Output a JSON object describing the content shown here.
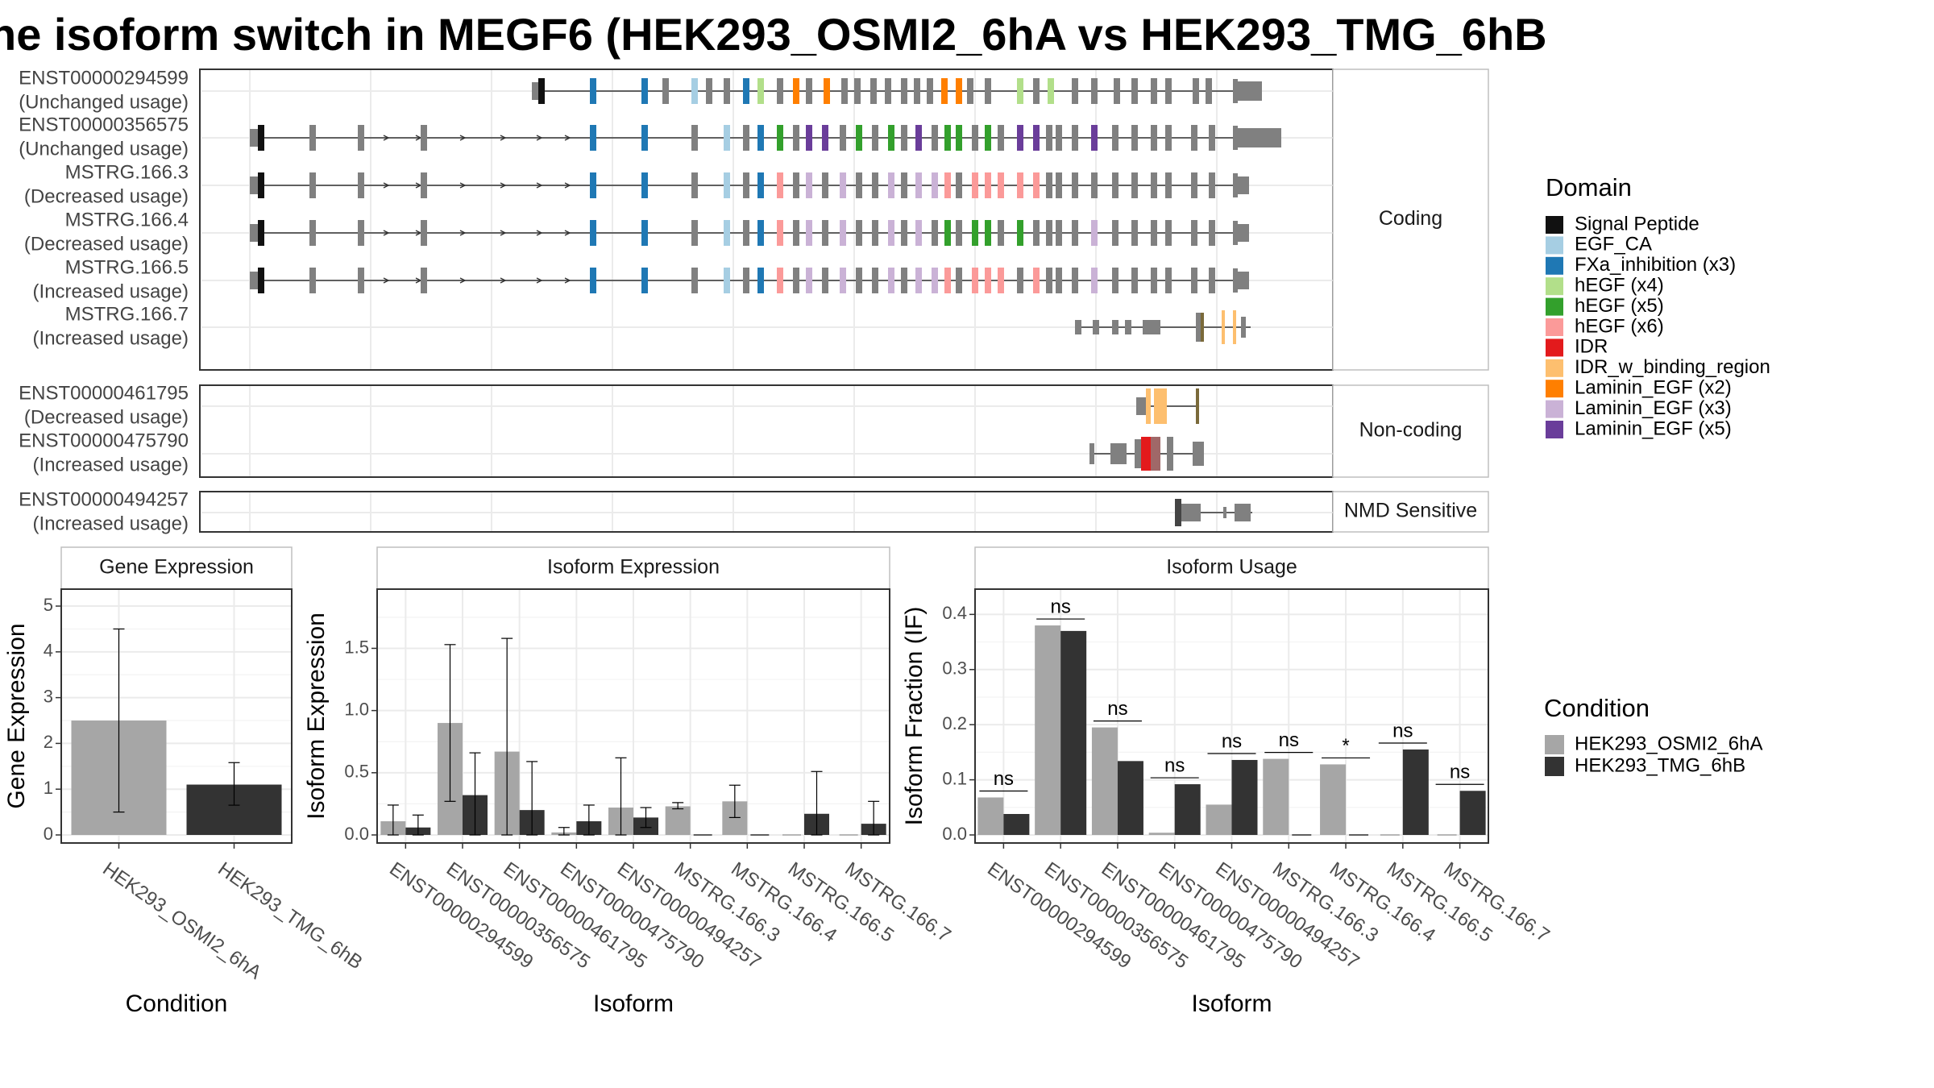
{
  "title": "he isoform switch in MEGF6 (HEK293_OSMI2_6hA vs HEK293_TMG_6hB",
  "colors": {
    "intron": "#333333",
    "exon": "#808080",
    "grid": "#ebebeb",
    "panel_border": "#333333",
    "strip_border": "#bfbfbf",
    "bar_condA": "#a6a6a6",
    "bar_condB": "#333333"
  },
  "chart_data": [
    {
      "type": "gene-structure",
      "facets": [
        {
          "label": "Coding",
          "tracks": [
            {
              "id": "ENST00000294599",
              "usage": "(Unchanged usage)"
            },
            {
              "id": "ENST00000356575",
              "usage": "(Unchanged usage)"
            },
            {
              "id": "MSTRG.166.3",
              "usage": "(Decreased usage)"
            },
            {
              "id": "MSTRG.166.4",
              "usage": "(Decreased usage)"
            },
            {
              "id": "MSTRG.166.5",
              "usage": "(Increased usage)"
            },
            {
              "id": "MSTRG.166.7",
              "usage": "(Increased usage)"
            }
          ]
        },
        {
          "label": "Non-coding",
          "tracks": [
            {
              "id": "ENST00000461795",
              "usage": "(Decreased usage)"
            },
            {
              "id": "ENST00000475790",
              "usage": "(Increased usage)"
            }
          ]
        },
        {
          "label": "NMD Sensitive",
          "tracks": [
            {
              "id": "ENST00000494257",
              "usage": "(Increased usage)"
            }
          ]
        }
      ],
      "legend": {
        "title": "Domain",
        "placement": "right",
        "entries": [
          {
            "label": "Signal Peptide",
            "color": "#111111"
          },
          {
            "label": "EGF_CA",
            "color": "#a6cee3"
          },
          {
            "label": "FXa_inhibition (x3)",
            "color": "#1f78b4"
          },
          {
            "label": "hEGF (x4)",
            "color": "#b2df8a"
          },
          {
            "label": "hEGF (x5)",
            "color": "#33a02c"
          },
          {
            "label": "hEGF (x6)",
            "color": "#fb9a99"
          },
          {
            "label": "IDR",
            "color": "#e31a1c"
          },
          {
            "label": "IDR_w_binding_region",
            "color": "#fdbf6f"
          },
          {
            "label": "Laminin_EGF (x2)",
            "color": "#ff7f00"
          },
          {
            "label": "Laminin_EGF (x3)",
            "color": "#cab2d6"
          },
          {
            "label": "Laminin_EGF (x5)",
            "color": "#6a3d9a"
          }
        ]
      }
    },
    {
      "type": "bar",
      "panel": "Gene Expression",
      "xlabel": "Condition",
      "ylabel": "Gene Expression",
      "ylim": [
        0,
        5.3
      ],
      "yticks": [
        "0",
        "1",
        "2",
        "3",
        "4",
        "5"
      ],
      "grid": true,
      "categories": [
        "HEK293_OSMI2_6hA",
        "HEK293_TMG_6hB"
      ],
      "values": [
        2.5,
        1.1
      ],
      "error": [
        [
          0.5,
          4.5
        ],
        [
          0.65,
          1.58
        ]
      ]
    },
    {
      "type": "bar",
      "panel": "Isoform Expression",
      "xlabel": "Isoform",
      "ylabel": "Isoform Expression",
      "ylim": [
        0,
        1.95
      ],
      "yticks": [
        "0.0",
        "0.5",
        "1.0",
        "1.5"
      ],
      "grid": true,
      "categories": [
        "ENST00000294599",
        "ENST00000356575",
        "ENST00000461795",
        "ENST00000475790",
        "ENST00000494257",
        "MSTRG.166.3",
        "MSTRG.166.4",
        "MSTRG.166.5",
        "MSTRG.166.7"
      ],
      "series": [
        {
          "name": "HEK293_OSMI2_6hA",
          "values": [
            0.11,
            0.9,
            0.67,
            0.02,
            0.22,
            0.23,
            0.27,
            0.0,
            0.0
          ],
          "error": [
            [
              0.0,
              0.24
            ],
            [
              0.27,
              1.53
            ],
            [
              0.0,
              1.58
            ],
            [
              0.0,
              0.06
            ],
            [
              0.0,
              0.62
            ],
            [
              0.21,
              0.26
            ],
            [
              0.14,
              0.4
            ],
            null,
            null
          ]
        },
        {
          "name": "HEK293_TMG_6hB",
          "values": [
            0.06,
            0.32,
            0.2,
            0.11,
            0.14,
            0.0,
            0.0,
            0.17,
            0.09
          ],
          "error": [
            [
              0.0,
              0.16
            ],
            [
              0.0,
              0.66
            ],
            [
              0.0,
              0.59
            ],
            [
              0.0,
              0.24
            ],
            [
              0.06,
              0.22
            ],
            null,
            null,
            [
              0.0,
              0.51
            ],
            [
              0.0,
              0.27
            ]
          ]
        }
      ]
    },
    {
      "type": "bar",
      "panel": "Isoform Usage",
      "xlabel": "Isoform",
      "ylabel": "Isoform Fraction (IF)",
      "ylim": [
        0,
        0.44
      ],
      "yticks": [
        "0.0",
        "0.1",
        "0.2",
        "0.3",
        "0.4"
      ],
      "grid": true,
      "categories": [
        "ENST00000294599",
        "ENST00000356575",
        "ENST00000461795",
        "ENST00000475790",
        "ENST00000494257",
        "MSTRG.166.3",
        "MSTRG.166.4",
        "MSTRG.166.5",
        "MSTRG.166.7"
      ],
      "series": [
        {
          "name": "HEK293_OSMI2_6hA",
          "values": [
            0.068,
            0.38,
            0.195,
            0.004,
            0.055,
            0.138,
            0.128,
            0.0,
            0.0
          ]
        },
        {
          "name": "HEK293_TMG_6hB",
          "values": [
            0.038,
            0.37,
            0.134,
            0.092,
            0.136,
            0.0,
            0.0,
            0.155,
            0.08
          ]
        }
      ],
      "significance": [
        "ns",
        "ns",
        "ns",
        "ns",
        "ns",
        "ns",
        "*",
        "ns",
        "ns"
      ]
    },
    {
      "type": "legend",
      "title": "Condition",
      "placement": "right",
      "entries": [
        {
          "label": "HEK293_OSMI2_6hA",
          "color": "#a6a6a6"
        },
        {
          "label": "HEK293_TMG_6hB",
          "color": "#333333"
        }
      ]
    }
  ]
}
